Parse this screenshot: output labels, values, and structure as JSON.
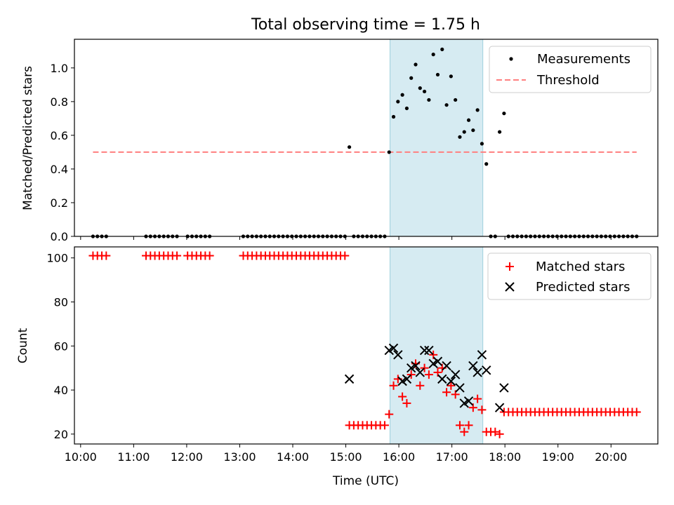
{
  "chart_data": [
    {
      "type": "scatter",
      "title": "Total observing time = 1.75 h",
      "xlabel": "",
      "ylabel": "Matched/Predicted stars",
      "xlim": [
        "09:53",
        "20:53"
      ],
      "ylim": [
        0,
        1.17
      ],
      "yticks": [
        0.0,
        0.2,
        0.4,
        0.6,
        0.8,
        1.0
      ],
      "ytick_labels": [
        "0.0",
        "0.2",
        "0.4",
        "0.6",
        "0.8",
        "1.0"
      ],
      "highlight_span": [
        "15:50",
        "17:35"
      ],
      "colors": {
        "measurements": "#000000",
        "threshold": "#ff7f7f",
        "span": "#add8e6"
      },
      "legend_position": "top-right",
      "series": [
        {
          "name": "Measurements",
          "kind": "scatter",
          "points": [
            [
              "10:14",
              0
            ],
            [
              "10:19",
              0
            ],
            [
              "10:24",
              0
            ],
            [
              "10:29",
              0
            ],
            [
              "11:14",
              0
            ],
            [
              "11:19",
              0
            ],
            [
              "11:24",
              0
            ],
            [
              "11:29",
              0
            ],
            [
              "11:34",
              0
            ],
            [
              "11:39",
              0
            ],
            [
              "11:44",
              0
            ],
            [
              "11:49",
              0
            ],
            [
              "12:01",
              0
            ],
            [
              "12:06",
              0
            ],
            [
              "12:11",
              0
            ],
            [
              "12:16",
              0
            ],
            [
              "12:21",
              0
            ],
            [
              "12:26",
              0
            ],
            [
              "13:04",
              0
            ],
            [
              "13:09",
              0
            ],
            [
              "13:14",
              0
            ],
            [
              "13:19",
              0
            ],
            [
              "13:24",
              0
            ],
            [
              "13:29",
              0
            ],
            [
              "13:34",
              0
            ],
            [
              "13:39",
              0
            ],
            [
              "13:44",
              0
            ],
            [
              "13:49",
              0
            ],
            [
              "13:54",
              0
            ],
            [
              "13:59",
              0
            ],
            [
              "14:04",
              0
            ],
            [
              "14:09",
              0
            ],
            [
              "14:14",
              0
            ],
            [
              "14:19",
              0
            ],
            [
              "14:24",
              0
            ],
            [
              "14:29",
              0
            ],
            [
              "14:34",
              0
            ],
            [
              "14:39",
              0
            ],
            [
              "14:44",
              0
            ],
            [
              "14:49",
              0
            ],
            [
              "14:54",
              0
            ],
            [
              "14:59",
              0
            ],
            [
              "15:04",
              0.53
            ],
            [
              "15:09",
              0
            ],
            [
              "15:14",
              0
            ],
            [
              "15:19",
              0
            ],
            [
              "15:24",
              0
            ],
            [
              "15:29",
              0
            ],
            [
              "15:34",
              0
            ],
            [
              "15:39",
              0
            ],
            [
              "15:44",
              0
            ],
            [
              "15:49",
              0.5
            ],
            [
              "15:54",
              0.71
            ],
            [
              "15:59",
              0.8
            ],
            [
              "16:04",
              0.84
            ],
            [
              "16:09",
              0.76
            ],
            [
              "16:14",
              0.94
            ],
            [
              "16:19",
              1.02
            ],
            [
              "16:24",
              0.88
            ],
            [
              "16:29",
              0.86
            ],
            [
              "16:34",
              0.81
            ],
            [
              "16:39",
              1.08
            ],
            [
              "16:44",
              0.96
            ],
            [
              "16:49",
              1.11
            ],
            [
              "16:54",
              0.78
            ],
            [
              "16:59",
              0.95
            ],
            [
              "17:04",
              0.81
            ],
            [
              "17:09",
              0.59
            ],
            [
              "17:14",
              0.62
            ],
            [
              "17:19",
              0.69
            ],
            [
              "17:24",
              0.63
            ],
            [
              "17:29",
              0.75
            ],
            [
              "17:34",
              0.55
            ],
            [
              "17:39",
              0.43
            ],
            [
              "17:44",
              0
            ],
            [
              "17:49",
              0
            ],
            [
              "17:54",
              0.62
            ],
            [
              "17:59",
              0.73
            ],
            [
              "18:04",
              0
            ],
            [
              "18:09",
              0
            ],
            [
              "18:14",
              0
            ],
            [
              "18:19",
              0
            ],
            [
              "18:24",
              0
            ],
            [
              "18:29",
              0
            ],
            [
              "18:34",
              0
            ],
            [
              "18:39",
              0
            ],
            [
              "18:44",
              0
            ],
            [
              "18:49",
              0
            ],
            [
              "18:54",
              0
            ],
            [
              "18:59",
              0
            ],
            [
              "19:04",
              0
            ],
            [
              "19:09",
              0
            ],
            [
              "19:14",
              0
            ],
            [
              "19:19",
              0
            ],
            [
              "19:24",
              0
            ],
            [
              "19:29",
              0
            ],
            [
              "19:34",
              0
            ],
            [
              "19:39",
              0
            ],
            [
              "19:44",
              0
            ],
            [
              "19:49",
              0
            ],
            [
              "19:54",
              0
            ],
            [
              "19:59",
              0
            ],
            [
              "20:04",
              0
            ],
            [
              "20:09",
              0
            ],
            [
              "20:14",
              0
            ],
            [
              "20:19",
              0
            ],
            [
              "20:24",
              0
            ],
            [
              "20:29",
              0
            ]
          ]
        },
        {
          "name": "Threshold",
          "kind": "dashed-line",
          "points": [
            [
              "10:14",
              0.5
            ],
            [
              "20:29",
              0.5
            ]
          ]
        }
      ]
    },
    {
      "type": "scatter",
      "title": "",
      "xlabel": "Time (UTC)",
      "ylabel": "Count",
      "xlim": [
        "09:53",
        "20:53"
      ],
      "ylim": [
        15.5,
        105
      ],
      "yticks": [
        20,
        40,
        60,
        80,
        100
      ],
      "ytick_labels": [
        "20",
        "40",
        "60",
        "80",
        "100"
      ],
      "xticks": [
        "10:00",
        "11:00",
        "12:00",
        "13:00",
        "14:00",
        "15:00",
        "16:00",
        "17:00",
        "18:00",
        "19:00",
        "20:00"
      ],
      "highlight_span": [
        "15:50",
        "17:35"
      ],
      "colors": {
        "matched": "#ff0000",
        "predicted": "#000000",
        "span": "#add8e6"
      },
      "legend_position": "top-right",
      "series": [
        {
          "name": "Matched stars",
          "kind": "plus",
          "points": [
            [
              "10:14",
              101
            ],
            [
              "10:19",
              101
            ],
            [
              "10:24",
              101
            ],
            [
              "10:29",
              101
            ],
            [
              "11:14",
              101
            ],
            [
              "11:19",
              101
            ],
            [
              "11:24",
              101
            ],
            [
              "11:29",
              101
            ],
            [
              "11:34",
              101
            ],
            [
              "11:39",
              101
            ],
            [
              "11:44",
              101
            ],
            [
              "11:49",
              101
            ],
            [
              "12:01",
              101
            ],
            [
              "12:06",
              101
            ],
            [
              "12:11",
              101
            ],
            [
              "12:16",
              101
            ],
            [
              "12:21",
              101
            ],
            [
              "12:26",
              101
            ],
            [
              "13:04",
              101
            ],
            [
              "13:09",
              101
            ],
            [
              "13:14",
              101
            ],
            [
              "13:19",
              101
            ],
            [
              "13:24",
              101
            ],
            [
              "13:29",
              101
            ],
            [
              "13:34",
              101
            ],
            [
              "13:39",
              101
            ],
            [
              "13:44",
              101
            ],
            [
              "13:49",
              101
            ],
            [
              "13:54",
              101
            ],
            [
              "13:59",
              101
            ],
            [
              "14:04",
              101
            ],
            [
              "14:09",
              101
            ],
            [
              "14:14",
              101
            ],
            [
              "14:19",
              101
            ],
            [
              "14:24",
              101
            ],
            [
              "14:29",
              101
            ],
            [
              "14:34",
              101
            ],
            [
              "14:39",
              101
            ],
            [
              "14:44",
              101
            ],
            [
              "14:49",
              101
            ],
            [
              "14:54",
              101
            ],
            [
              "14:59",
              101
            ],
            [
              "15:04",
              24
            ],
            [
              "15:09",
              24
            ],
            [
              "15:14",
              24
            ],
            [
              "15:19",
              24
            ],
            [
              "15:24",
              24
            ],
            [
              "15:29",
              24
            ],
            [
              "15:34",
              24
            ],
            [
              "15:39",
              24
            ],
            [
              "15:44",
              24
            ],
            [
              "15:49",
              29
            ],
            [
              "15:54",
              42
            ],
            [
              "15:59",
              45
            ],
            [
              "16:04",
              37
            ],
            [
              "16:09",
              34
            ],
            [
              "16:14",
              47
            ],
            [
              "16:19",
              52
            ],
            [
              "16:24",
              42
            ],
            [
              "16:29",
              50
            ],
            [
              "16:34",
              47
            ],
            [
              "16:39",
              56
            ],
            [
              "16:44",
              48
            ],
            [
              "16:49",
              50
            ],
            [
              "16:54",
              39
            ],
            [
              "16:59",
              42
            ],
            [
              "17:04",
              38
            ],
            [
              "17:09",
              24
            ],
            [
              "17:14",
              21
            ],
            [
              "17:19",
              24
            ],
            [
              "17:24",
              32
            ],
            [
              "17:29",
              36
            ],
            [
              "17:34",
              31
            ],
            [
              "17:39",
              21
            ],
            [
              "17:44",
              21
            ],
            [
              "17:49",
              21
            ],
            [
              "17:54",
              20
            ],
            [
              "17:59",
              30
            ],
            [
              "18:04",
              30
            ],
            [
              "18:09",
              30
            ],
            [
              "18:14",
              30
            ],
            [
              "18:19",
              30
            ],
            [
              "18:24",
              30
            ],
            [
              "18:29",
              30
            ],
            [
              "18:34",
              30
            ],
            [
              "18:39",
              30
            ],
            [
              "18:44",
              30
            ],
            [
              "18:49",
              30
            ],
            [
              "18:54",
              30
            ],
            [
              "18:59",
              30
            ],
            [
              "19:04",
              30
            ],
            [
              "19:09",
              30
            ],
            [
              "19:14",
              30
            ],
            [
              "19:19",
              30
            ],
            [
              "19:24",
              30
            ],
            [
              "19:29",
              30
            ],
            [
              "19:34",
              30
            ],
            [
              "19:39",
              30
            ],
            [
              "19:44",
              30
            ],
            [
              "19:49",
              30
            ],
            [
              "19:54",
              30
            ],
            [
              "19:59",
              30
            ],
            [
              "20:04",
              30
            ],
            [
              "20:09",
              30
            ],
            [
              "20:14",
              30
            ],
            [
              "20:19",
              30
            ],
            [
              "20:24",
              30
            ],
            [
              "20:29",
              30
            ]
          ]
        },
        {
          "name": "Predicted stars",
          "kind": "cross",
          "points": [
            [
              "15:04",
              45
            ],
            [
              "15:49",
              58
            ],
            [
              "15:54",
              59
            ],
            [
              "15:59",
              56
            ],
            [
              "16:04",
              44
            ],
            [
              "16:09",
              45
            ],
            [
              "16:14",
              50
            ],
            [
              "16:19",
              51
            ],
            [
              "16:24",
              48
            ],
            [
              "16:29",
              58
            ],
            [
              "16:34",
              58
            ],
            [
              "16:39",
              52
            ],
            [
              "16:44",
              53
            ],
            [
              "16:49",
              45
            ],
            [
              "16:54",
              51
            ],
            [
              "16:59",
              44
            ],
            [
              "17:04",
              47
            ],
            [
              "17:09",
              41
            ],
            [
              "17:14",
              34
            ],
            [
              "17:19",
              35
            ],
            [
              "17:24",
              51
            ],
            [
              "17:29",
              48
            ],
            [
              "17:34",
              56
            ],
            [
              "17:39",
              49
            ],
            [
              "17:54",
              32
            ],
            [
              "17:59",
              41
            ]
          ]
        }
      ]
    }
  ]
}
